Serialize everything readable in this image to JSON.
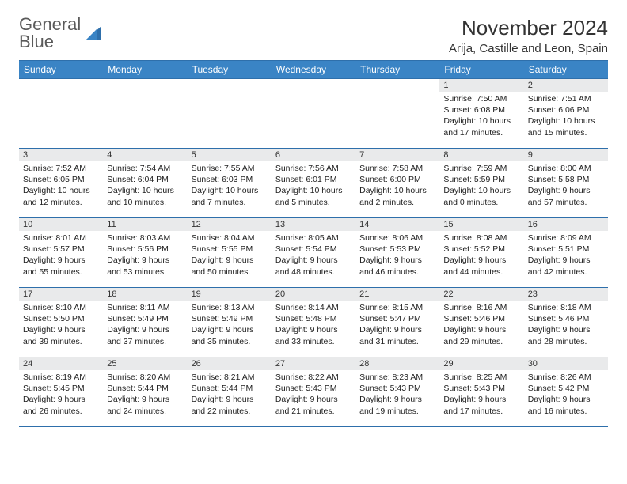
{
  "brand": {
    "word1": "General",
    "word2": "Blue"
  },
  "title": "November 2024",
  "location": "Arija, Castille and Leon, Spain",
  "colors": {
    "header_bg": "#3a84c5",
    "border": "#2e6fab",
    "daynum_bg": "#e9eaeb",
    "logo_gray": "#5a5a5a",
    "logo_blue": "#3a7fc4"
  },
  "weekdays": [
    "Sunday",
    "Monday",
    "Tuesday",
    "Wednesday",
    "Thursday",
    "Friday",
    "Saturday"
  ],
  "weeks": [
    [
      null,
      null,
      null,
      null,
      null,
      {
        "n": "1",
        "sr": "7:50 AM",
        "ss": "6:08 PM",
        "dl": "10 hours and 17 minutes."
      },
      {
        "n": "2",
        "sr": "7:51 AM",
        "ss": "6:06 PM",
        "dl": "10 hours and 15 minutes."
      }
    ],
    [
      {
        "n": "3",
        "sr": "7:52 AM",
        "ss": "6:05 PM",
        "dl": "10 hours and 12 minutes."
      },
      {
        "n": "4",
        "sr": "7:54 AM",
        "ss": "6:04 PM",
        "dl": "10 hours and 10 minutes."
      },
      {
        "n": "5",
        "sr": "7:55 AM",
        "ss": "6:03 PM",
        "dl": "10 hours and 7 minutes."
      },
      {
        "n": "6",
        "sr": "7:56 AM",
        "ss": "6:01 PM",
        "dl": "10 hours and 5 minutes."
      },
      {
        "n": "7",
        "sr": "7:58 AM",
        "ss": "6:00 PM",
        "dl": "10 hours and 2 minutes."
      },
      {
        "n": "8",
        "sr": "7:59 AM",
        "ss": "5:59 PM",
        "dl": "10 hours and 0 minutes."
      },
      {
        "n": "9",
        "sr": "8:00 AM",
        "ss": "5:58 PM",
        "dl": "9 hours and 57 minutes."
      }
    ],
    [
      {
        "n": "10",
        "sr": "8:01 AM",
        "ss": "5:57 PM",
        "dl": "9 hours and 55 minutes."
      },
      {
        "n": "11",
        "sr": "8:03 AM",
        "ss": "5:56 PM",
        "dl": "9 hours and 53 minutes."
      },
      {
        "n": "12",
        "sr": "8:04 AM",
        "ss": "5:55 PM",
        "dl": "9 hours and 50 minutes."
      },
      {
        "n": "13",
        "sr": "8:05 AM",
        "ss": "5:54 PM",
        "dl": "9 hours and 48 minutes."
      },
      {
        "n": "14",
        "sr": "8:06 AM",
        "ss": "5:53 PM",
        "dl": "9 hours and 46 minutes."
      },
      {
        "n": "15",
        "sr": "8:08 AM",
        "ss": "5:52 PM",
        "dl": "9 hours and 44 minutes."
      },
      {
        "n": "16",
        "sr": "8:09 AM",
        "ss": "5:51 PM",
        "dl": "9 hours and 42 minutes."
      }
    ],
    [
      {
        "n": "17",
        "sr": "8:10 AM",
        "ss": "5:50 PM",
        "dl": "9 hours and 39 minutes."
      },
      {
        "n": "18",
        "sr": "8:11 AM",
        "ss": "5:49 PM",
        "dl": "9 hours and 37 minutes."
      },
      {
        "n": "19",
        "sr": "8:13 AM",
        "ss": "5:49 PM",
        "dl": "9 hours and 35 minutes."
      },
      {
        "n": "20",
        "sr": "8:14 AM",
        "ss": "5:48 PM",
        "dl": "9 hours and 33 minutes."
      },
      {
        "n": "21",
        "sr": "8:15 AM",
        "ss": "5:47 PM",
        "dl": "9 hours and 31 minutes."
      },
      {
        "n": "22",
        "sr": "8:16 AM",
        "ss": "5:46 PM",
        "dl": "9 hours and 29 minutes."
      },
      {
        "n": "23",
        "sr": "8:18 AM",
        "ss": "5:46 PM",
        "dl": "9 hours and 28 minutes."
      }
    ],
    [
      {
        "n": "24",
        "sr": "8:19 AM",
        "ss": "5:45 PM",
        "dl": "9 hours and 26 minutes."
      },
      {
        "n": "25",
        "sr": "8:20 AM",
        "ss": "5:44 PM",
        "dl": "9 hours and 24 minutes."
      },
      {
        "n": "26",
        "sr": "8:21 AM",
        "ss": "5:44 PM",
        "dl": "9 hours and 22 minutes."
      },
      {
        "n": "27",
        "sr": "8:22 AM",
        "ss": "5:43 PM",
        "dl": "9 hours and 21 minutes."
      },
      {
        "n": "28",
        "sr": "8:23 AM",
        "ss": "5:43 PM",
        "dl": "9 hours and 19 minutes."
      },
      {
        "n": "29",
        "sr": "8:25 AM",
        "ss": "5:43 PM",
        "dl": "9 hours and 17 minutes."
      },
      {
        "n": "30",
        "sr": "8:26 AM",
        "ss": "5:42 PM",
        "dl": "9 hours and 16 minutes."
      }
    ]
  ],
  "labels": {
    "sunrise": "Sunrise:",
    "sunset": "Sunset:",
    "daylight": "Daylight:"
  }
}
